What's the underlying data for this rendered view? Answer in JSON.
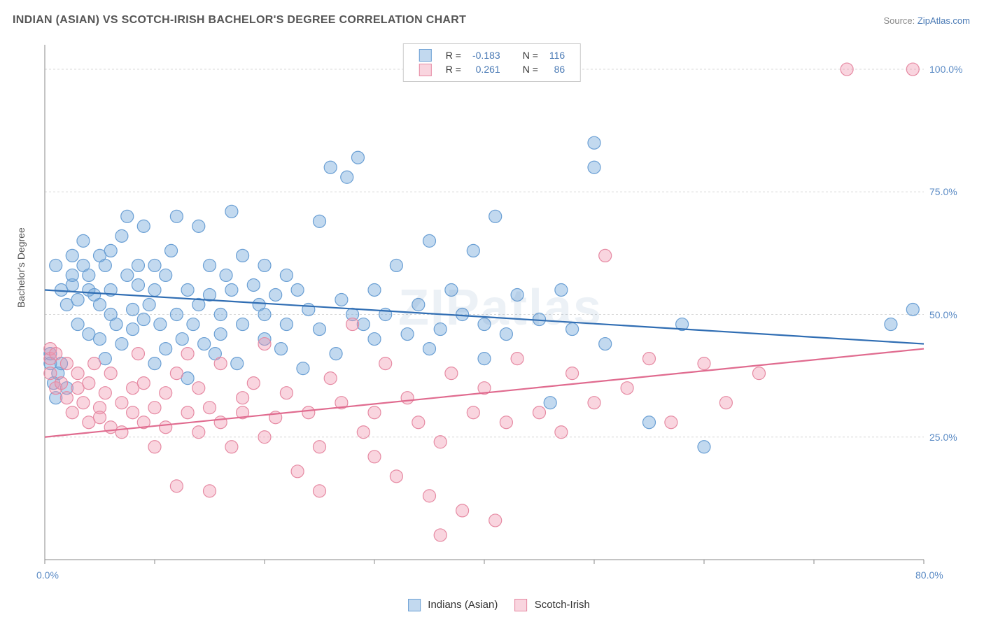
{
  "title": "INDIAN (ASIAN) VS SCOTCH-IRISH BACHELOR'S DEGREE CORRELATION CHART",
  "source_prefix": "Source: ",
  "source_link": "ZipAtlas.com",
  "y_label": "Bachelor's Degree",
  "watermark": "ZIPatlas",
  "chart": {
    "type": "scatter",
    "xlim": [
      0,
      80
    ],
    "ylim": [
      0,
      105
    ],
    "x_ticks": [
      0,
      10,
      20,
      30,
      40,
      50,
      60,
      70,
      80
    ],
    "x_tick_labels": {
      "0": "0.0%",
      "80": "80.0%"
    },
    "y_ticks": [
      25,
      50,
      75,
      100
    ],
    "y_tick_labels": {
      "25": "25.0%",
      "50": "50.0%",
      "75": "75.0%",
      "100": "100.0%"
    },
    "grid_color": "#d8d8d8",
    "axis_color": "#888888",
    "tick_label_color": "#5b8bc5",
    "background": "#ffffff",
    "marker_radius": 9,
    "marker_stroke_width": 1.2,
    "line_width": 2.2,
    "series": [
      {
        "name": "Indians (Asian)",
        "fill": "rgba(120,170,220,0.45)",
        "stroke": "#6a9fd4",
        "line_color": "#2f6db3",
        "R": "-0.183",
        "N": "116",
        "trend": {
          "x1": 0,
          "y1": 55,
          "x2": 80,
          "y2": 44
        },
        "points": [
          [
            0.5,
            40
          ],
          [
            0.5,
            42
          ],
          [
            0.8,
            36
          ],
          [
            1,
            33
          ],
          [
            1,
            60
          ],
          [
            1.2,
            38
          ],
          [
            1.5,
            40
          ],
          [
            1.5,
            55
          ],
          [
            2,
            35
          ],
          [
            2,
            52
          ],
          [
            2.5,
            56
          ],
          [
            2.5,
            58
          ],
          [
            2.5,
            62
          ],
          [
            3,
            48
          ],
          [
            3,
            53
          ],
          [
            3.5,
            60
          ],
          [
            3.5,
            65
          ],
          [
            4,
            46
          ],
          [
            4,
            58
          ],
          [
            4,
            55
          ],
          [
            4.5,
            54
          ],
          [
            5,
            45
          ],
          [
            5,
            52
          ],
          [
            5,
            62
          ],
          [
            5.5,
            41
          ],
          [
            5.5,
            60
          ],
          [
            6,
            50
          ],
          [
            6,
            55
          ],
          [
            6,
            63
          ],
          [
            6.5,
            48
          ],
          [
            7,
            44
          ],
          [
            7,
            66
          ],
          [
            7.5,
            58
          ],
          [
            7.5,
            70
          ],
          [
            8,
            47
          ],
          [
            8,
            51
          ],
          [
            8.5,
            56
          ],
          [
            8.5,
            60
          ],
          [
            9,
            49
          ],
          [
            9,
            68
          ],
          [
            9.5,
            52
          ],
          [
            10,
            40
          ],
          [
            10,
            55
          ],
          [
            10,
            60
          ],
          [
            10.5,
            48
          ],
          [
            11,
            43
          ],
          [
            11,
            58
          ],
          [
            11.5,
            63
          ],
          [
            12,
            50
          ],
          [
            12,
            70
          ],
          [
            12.5,
            45
          ],
          [
            13,
            55
          ],
          [
            13,
            37
          ],
          [
            13.5,
            48
          ],
          [
            14,
            52
          ],
          [
            14,
            68
          ],
          [
            14.5,
            44
          ],
          [
            15,
            60
          ],
          [
            15,
            54
          ],
          [
            15.5,
            42
          ],
          [
            16,
            50
          ],
          [
            16,
            46
          ],
          [
            16.5,
            58
          ],
          [
            17,
            55
          ],
          [
            17,
            71
          ],
          [
            17.5,
            40
          ],
          [
            18,
            48
          ],
          [
            18,
            62
          ],
          [
            19,
            56
          ],
          [
            19.5,
            52
          ],
          [
            20,
            45
          ],
          [
            20,
            50
          ],
          [
            20,
            60
          ],
          [
            21,
            54
          ],
          [
            21.5,
            43
          ],
          [
            22,
            48
          ],
          [
            22,
            58
          ],
          [
            23,
            55
          ],
          [
            23.5,
            39
          ],
          [
            24,
            51
          ],
          [
            25,
            47
          ],
          [
            25,
            69
          ],
          [
            26,
            80
          ],
          [
            26.5,
            42
          ],
          [
            27,
            53
          ],
          [
            27.5,
            78
          ],
          [
            28,
            50
          ],
          [
            28.5,
            82
          ],
          [
            29,
            48
          ],
          [
            30,
            45
          ],
          [
            30,
            55
          ],
          [
            31,
            50
          ],
          [
            32,
            60
          ],
          [
            33,
            46
          ],
          [
            34,
            52
          ],
          [
            35,
            43
          ],
          [
            35,
            65
          ],
          [
            36,
            47
          ],
          [
            37,
            55
          ],
          [
            38,
            50
          ],
          [
            39,
            63
          ],
          [
            40,
            41
          ],
          [
            40,
            48
          ],
          [
            41,
            70
          ],
          [
            42,
            46
          ],
          [
            43,
            54
          ],
          [
            45,
            49
          ],
          [
            46,
            32
          ],
          [
            47,
            55
          ],
          [
            48,
            47
          ],
          [
            50,
            80
          ],
          [
            50,
            85
          ],
          [
            51,
            44
          ],
          [
            55,
            28
          ],
          [
            58,
            48
          ],
          [
            60,
            23
          ],
          [
            77,
            48
          ],
          [
            79,
            51
          ]
        ]
      },
      {
        "name": "Scotch-Irish",
        "fill": "rgba(240,150,175,0.4)",
        "stroke": "#e68aa3",
        "line_color": "#e06b8f",
        "R": "0.261",
        "N": "86",
        "trend": {
          "x1": 0,
          "y1": 25,
          "x2": 80,
          "y2": 43
        },
        "points": [
          [
            0.5,
            41
          ],
          [
            0.5,
            43
          ],
          [
            0.5,
            38
          ],
          [
            1,
            35
          ],
          [
            1,
            42
          ],
          [
            1.5,
            36
          ],
          [
            2,
            33
          ],
          [
            2,
            40
          ],
          [
            2.5,
            30
          ],
          [
            3,
            38
          ],
          [
            3,
            35
          ],
          [
            3.5,
            32
          ],
          [
            4,
            28
          ],
          [
            4,
            36
          ],
          [
            4.5,
            40
          ],
          [
            5,
            31
          ],
          [
            5,
            29
          ],
          [
            5.5,
            34
          ],
          [
            6,
            27
          ],
          [
            6,
            38
          ],
          [
            7,
            32
          ],
          [
            7,
            26
          ],
          [
            8,
            35
          ],
          [
            8,
            30
          ],
          [
            8.5,
            42
          ],
          [
            9,
            28
          ],
          [
            9,
            36
          ],
          [
            10,
            23
          ],
          [
            10,
            31
          ],
          [
            11,
            34
          ],
          [
            11,
            27
          ],
          [
            12,
            38
          ],
          [
            12,
            15
          ],
          [
            13,
            30
          ],
          [
            13,
            42
          ],
          [
            14,
            26
          ],
          [
            14,
            35
          ],
          [
            15,
            31
          ],
          [
            15,
            14
          ],
          [
            16,
            28
          ],
          [
            16,
            40
          ],
          [
            17,
            23
          ],
          [
            18,
            33
          ],
          [
            18,
            30
          ],
          [
            19,
            36
          ],
          [
            20,
            25
          ],
          [
            20,
            44
          ],
          [
            21,
            29
          ],
          [
            22,
            34
          ],
          [
            23,
            18
          ],
          [
            24,
            30
          ],
          [
            25,
            14
          ],
          [
            25,
            23
          ],
          [
            26,
            37
          ],
          [
            27,
            32
          ],
          [
            28,
            48
          ],
          [
            29,
            26
          ],
          [
            30,
            30
          ],
          [
            30,
            21
          ],
          [
            31,
            40
          ],
          [
            32,
            17
          ],
          [
            33,
            33
          ],
          [
            34,
            28
          ],
          [
            35,
            13
          ],
          [
            36,
            24
          ],
          [
            36,
            5
          ],
          [
            37,
            38
          ],
          [
            38,
            10
          ],
          [
            39,
            30
          ],
          [
            40,
            35
          ],
          [
            41,
            8
          ],
          [
            42,
            28
          ],
          [
            43,
            41
          ],
          [
            45,
            30
          ],
          [
            47,
            26
          ],
          [
            48,
            38
          ],
          [
            50,
            32
          ],
          [
            51,
            62
          ],
          [
            53,
            35
          ],
          [
            55,
            41
          ],
          [
            57,
            28
          ],
          [
            60,
            40
          ],
          [
            62,
            32
          ],
          [
            65,
            38
          ],
          [
            73,
            100
          ],
          [
            79,
            100
          ]
        ]
      }
    ]
  },
  "legend_top": {
    "r_label": "R =",
    "n_label": "N ="
  },
  "legend_bottom_labels": [
    "Indians (Asian)",
    "Scotch-Irish"
  ]
}
